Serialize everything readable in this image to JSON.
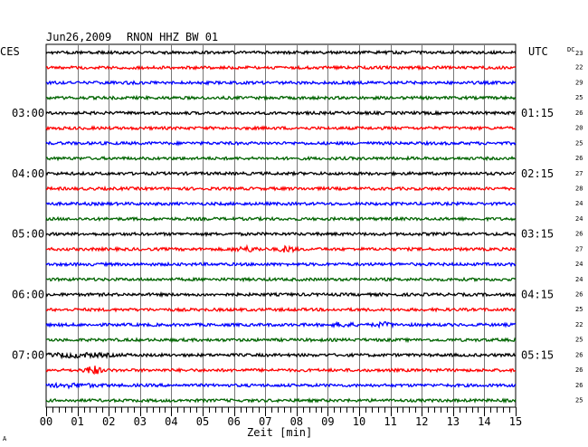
{
  "header": {
    "date": "Jun26,2009",
    "station": "RNON HHZ BW 01",
    "left_zone": "CES",
    "right_zone": "UTC",
    "dc_label": "DC"
  },
  "chart_data": {
    "type": "line",
    "title": "Jun26,2009   RNON HHZ BW 01",
    "xlabel": "Zeit [min]",
    "xlim": [
      0,
      15
    ],
    "x_ticks": [
      "00",
      "01",
      "02",
      "03",
      "04",
      "05",
      "06",
      "07",
      "08",
      "09",
      "10",
      "11",
      "12",
      "13",
      "14",
      "15"
    ],
    "minor_ticks_per_minute": 5,
    "grid": true,
    "trace_colors": [
      "#000000",
      "#ff0000",
      "#0000ff",
      "#006400"
    ],
    "trace_count": 24,
    "left_hour_labels": [
      {
        "trace": 4,
        "text": "03:00"
      },
      {
        "trace": 8,
        "text": "04:00"
      },
      {
        "trace": 12,
        "text": "05:00"
      },
      {
        "trace": 16,
        "text": "06:00"
      },
      {
        "trace": 20,
        "text": "07:00"
      }
    ],
    "right_hour_labels": [
      {
        "trace": 4,
        "text": "01:15"
      },
      {
        "trace": 8,
        "text": "02:15"
      },
      {
        "trace": 12,
        "text": "03:15"
      },
      {
        "trace": 16,
        "text": "04:15"
      },
      {
        "trace": 20,
        "text": "05:15"
      }
    ],
    "dc_offsets": [
      "23",
      "22",
      "29",
      "25",
      "26",
      "20",
      "25",
      "26",
      "27",
      "28",
      "24",
      "24",
      "26",
      "27",
      "24",
      "24",
      "26",
      "25",
      "22",
      "25",
      "26",
      "26",
      "26",
      "25"
    ],
    "events": [
      {
        "trace": 13,
        "minute": 6.4,
        "amplitude": 2.0,
        "width_min": 0.6
      },
      {
        "trace": 13,
        "minute": 7.7,
        "amplitude": 2.8,
        "width_min": 0.35
      },
      {
        "trace": 18,
        "minute": 9.5,
        "amplitude": 1.6,
        "width_min": 0.5
      },
      {
        "trace": 18,
        "minute": 10.8,
        "amplitude": 1.8,
        "width_min": 0.45
      },
      {
        "trace": 20,
        "minute": 1.0,
        "amplitude": 1.6,
        "width_min": 1.6
      },
      {
        "trace": 21,
        "minute": 1.5,
        "amplitude": 4.5,
        "width_min": 0.35
      },
      {
        "trace": 22,
        "minute": 0.8,
        "amplitude": 1.4,
        "width_min": 1.2
      }
    ]
  },
  "footer": {
    "corner_mark": "A"
  }
}
